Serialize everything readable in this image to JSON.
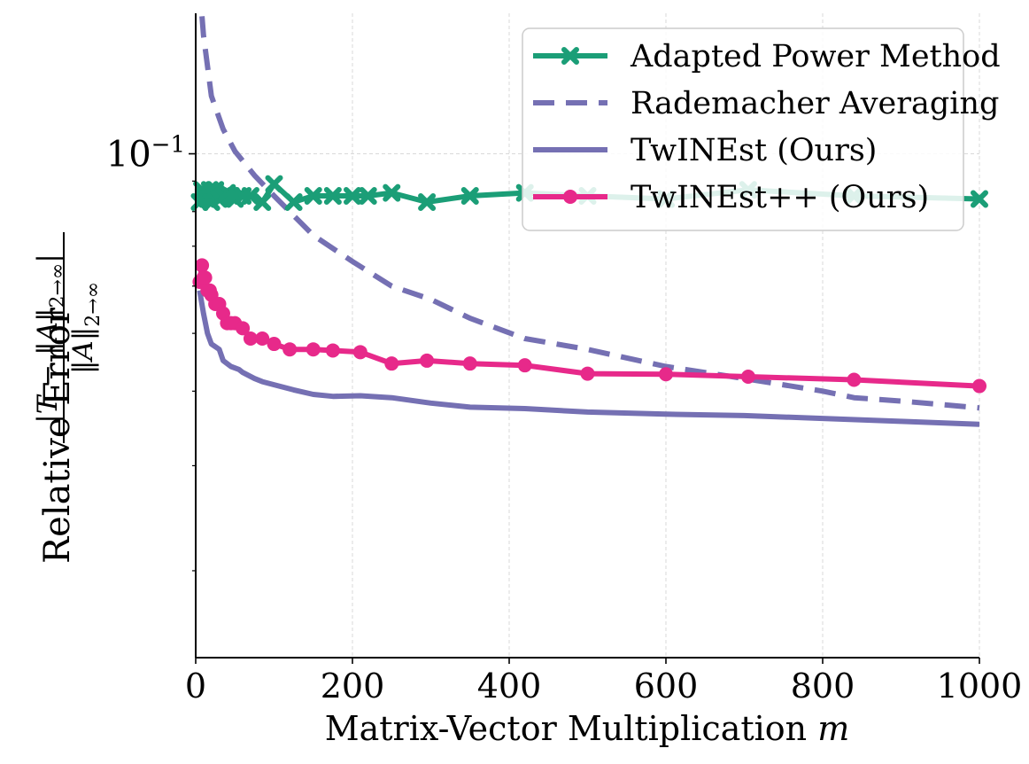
{
  "chart_data": {
    "type": "line",
    "title": "",
    "xlabel": "Matrix-Vector Multiplication",
    "xlabel_var": "m",
    "ylabel": "Relative Error",
    "ylabel_expr": {
      "numerator": "|T − ‖A‖",
      "numerator_sub": "2→∞",
      "numerator_end": "|",
      "denominator": "‖A‖",
      "denominator_sub": "2→∞"
    },
    "xlim": [
      0,
      1000
    ],
    "ylim_log": [
      0.0143,
      0.172
    ],
    "y_scale": "log",
    "x_ticks": [
      0,
      200,
      400,
      600,
      800,
      1000
    ],
    "x_tick_labels": [
      "0",
      "200",
      "400",
      "600",
      "800",
      "1000"
    ],
    "y_major_tick": {
      "value": 0.1,
      "base": "10",
      "exponent": "−1"
    },
    "y_minor_ticks": [
      0.02,
      0.03,
      0.04,
      0.05,
      0.06,
      0.07,
      0.08,
      0.09
    ],
    "grid": true,
    "legend_position": "top-right",
    "colors": {
      "green": "#1b9e77",
      "purple": "#7570b3",
      "pink": "#e7298a"
    },
    "series": [
      {
        "name": "Adapted Power Method",
        "color": "#1b9e77",
        "style": "solid",
        "marker": "x",
        "x": [
          5,
          8,
          10,
          12,
          15,
          18,
          20,
          25,
          30,
          35,
          40,
          45,
          50,
          60,
          70,
          85,
          100,
          125,
          150,
          175,
          200,
          220,
          250,
          295,
          350,
          420,
          500,
          600,
          705,
          840,
          1000
        ],
        "y": [
          0.083,
          0.087,
          0.085,
          0.086,
          0.084,
          0.087,
          0.083,
          0.087,
          0.084,
          0.085,
          0.086,
          0.085,
          0.084,
          0.085,
          0.085,
          0.083,
          0.089,
          0.083,
          0.085,
          0.085,
          0.085,
          0.085,
          0.086,
          0.083,
          0.085,
          0.086,
          0.085,
          0.084,
          0.087,
          0.085,
          0.084
        ]
      },
      {
        "name": "Rademacher Averaging",
        "color": "#7570b3",
        "style": "dashed",
        "marker": "none",
        "x": [
          8,
          10,
          20,
          35,
          50,
          75,
          100,
          150,
          200,
          250,
          300,
          350,
          420,
          500,
          600,
          700,
          800,
          840,
          900,
          1000
        ],
        "y": [
          0.17,
          0.158,
          0.125,
          0.11,
          0.101,
          0.092,
          0.085,
          0.073,
          0.066,
          0.06,
          0.057,
          0.053,
          0.049,
          0.047,
          0.044,
          0.042,
          0.04,
          0.039,
          0.0385,
          0.0375
        ]
      },
      {
        "name": "TwINEst (Ours)",
        "color": "#7570b3",
        "style": "solid",
        "marker": "none",
        "x": [
          5,
          10,
          15,
          20,
          30,
          35,
          45,
          55,
          60,
          75,
          85,
          100,
          125,
          150,
          175,
          210,
          250,
          300,
          350,
          420,
          500,
          600,
          700,
          800,
          900,
          1000
        ],
        "y": [
          0.059,
          0.054,
          0.05,
          0.048,
          0.047,
          0.045,
          0.044,
          0.0435,
          0.043,
          0.042,
          0.0415,
          0.041,
          0.0402,
          0.0395,
          0.0392,
          0.0393,
          0.039,
          0.0382,
          0.0376,
          0.0374,
          0.0369,
          0.0366,
          0.0364,
          0.036,
          0.0356,
          0.0352
        ]
      },
      {
        "name": "TwINEst++ (Ours)",
        "color": "#e7298a",
        "style": "solid",
        "marker": "o",
        "x": [
          5,
          8,
          10,
          12,
          15,
          18,
          20,
          25,
          30,
          35,
          40,
          45,
          50,
          60,
          70,
          85,
          100,
          120,
          150,
          175,
          210,
          250,
          295,
          350,
          420,
          500,
          600,
          705,
          840,
          1000
        ],
        "y": [
          0.061,
          0.065,
          0.062,
          0.062,
          0.059,
          0.059,
          0.058,
          0.056,
          0.056,
          0.054,
          0.052,
          0.052,
          0.052,
          0.051,
          0.049,
          0.049,
          0.048,
          0.047,
          0.047,
          0.0468,
          0.0465,
          0.0445,
          0.045,
          0.0445,
          0.0442,
          0.0428,
          0.0427,
          0.0423,
          0.0418,
          0.0408
        ]
      }
    ]
  }
}
